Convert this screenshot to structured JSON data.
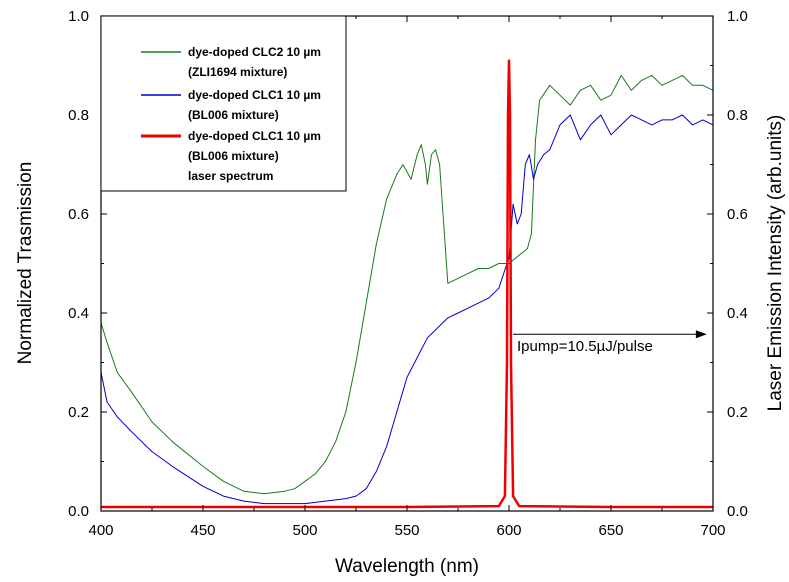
{
  "chart_data": {
    "type": "line",
    "xlabel": "Wavelength (nm)",
    "ylabel": "Normalized Trasmission",
    "ylabel_right": "Laser Emission Intensity (arb.units)",
    "xlim": [
      400,
      700
    ],
    "ylim": [
      0.0,
      1.0
    ],
    "ylim_right": [
      0.0,
      1.0
    ],
    "x_ticks": [
      "400",
      "450",
      "500",
      "550",
      "600",
      "650",
      "700"
    ],
    "y_ticks": [
      "0.0",
      "0.2",
      "0.4",
      "0.6",
      "0.8",
      "1.0"
    ],
    "y_ticks_right": [
      "0.0",
      "0.2",
      "0.4",
      "0.6",
      "0.8",
      "1.0"
    ],
    "grid": false,
    "legend_position": "top-left",
    "legend": [
      {
        "lines": [
          "dye-doped CLC2 10 µm",
          "(ZLI1694 mixture)"
        ],
        "color": "#1a7a1a"
      },
      {
        "lines": [
          "dye-doped CLC1 10 µm",
          "(BL006 mixture)"
        ],
        "color": "#0000cc"
      },
      {
        "lines": [
          "dye-doped CLC1 10 µm",
          "(BL006 mixture)",
          "laser spectrum"
        ],
        "color": "#ee0000"
      }
    ],
    "annotation": {
      "text": "Ipump=10.5µJ/pulse",
      "arrow_from_x": 602,
      "arrow_to_x": 697,
      "y": 0.357
    },
    "series": [
      {
        "color": "#1a7a1a",
        "x": [
          400,
          403,
          408,
          415,
          425,
          435,
          450,
          460,
          470,
          480,
          490,
          495,
          500,
          505,
          510,
          515,
          520,
          525,
          530,
          535,
          540,
          545,
          548,
          552,
          555,
          557,
          559,
          560,
          562,
          564,
          566,
          568,
          570,
          575,
          580,
          585,
          590,
          595,
          600,
          603,
          606,
          609,
          611,
          613,
          615,
          620,
          625,
          630,
          635,
          640,
          645,
          650,
          655,
          660,
          665,
          670,
          675,
          680,
          685,
          690,
          695,
          700
        ],
        "values": [
          0.38,
          0.34,
          0.28,
          0.24,
          0.18,
          0.14,
          0.09,
          0.06,
          0.04,
          0.035,
          0.04,
          0.045,
          0.06,
          0.075,
          0.1,
          0.14,
          0.2,
          0.3,
          0.42,
          0.54,
          0.63,
          0.68,
          0.7,
          0.67,
          0.72,
          0.74,
          0.7,
          0.66,
          0.72,
          0.73,
          0.7,
          0.58,
          0.46,
          0.47,
          0.48,
          0.49,
          0.49,
          0.5,
          0.5,
          0.51,
          0.52,
          0.53,
          0.56,
          0.75,
          0.83,
          0.86,
          0.84,
          0.82,
          0.85,
          0.86,
          0.83,
          0.84,
          0.88,
          0.85,
          0.87,
          0.88,
          0.86,
          0.87,
          0.88,
          0.86,
          0.86,
          0.85
        ]
      },
      {
        "color": "#0000cc",
        "x": [
          400,
          403,
          408,
          415,
          425,
          435,
          450,
          460,
          470,
          480,
          490,
          500,
          510,
          520,
          525,
          530,
          535,
          540,
          545,
          550,
          555,
          560,
          565,
          570,
          575,
          580,
          585,
          590,
          595,
          599,
          600,
          602,
          604,
          606,
          608,
          610,
          612,
          614,
          617,
          620,
          625,
          630,
          635,
          640,
          645,
          650,
          655,
          660,
          665,
          670,
          675,
          680,
          685,
          690,
          695,
          700
        ],
        "values": [
          0.28,
          0.22,
          0.19,
          0.16,
          0.12,
          0.09,
          0.05,
          0.03,
          0.02,
          0.015,
          0.015,
          0.015,
          0.02,
          0.025,
          0.03,
          0.045,
          0.08,
          0.13,
          0.2,
          0.27,
          0.31,
          0.35,
          0.37,
          0.39,
          0.4,
          0.41,
          0.42,
          0.43,
          0.45,
          0.5,
          0.51,
          0.62,
          0.58,
          0.6,
          0.7,
          0.72,
          0.67,
          0.7,
          0.72,
          0.73,
          0.78,
          0.8,
          0.75,
          0.78,
          0.8,
          0.76,
          0.78,
          0.8,
          0.79,
          0.78,
          0.79,
          0.79,
          0.8,
          0.78,
          0.79,
          0.78
        ]
      },
      {
        "color": "#ee0000",
        "x": [
          400,
          450,
          500,
          550,
          595,
          598,
          599,
          599.5,
          600,
          600.5,
          601,
          602,
          605,
          650,
          700
        ],
        "values": [
          0.008,
          0.008,
          0.008,
          0.008,
          0.01,
          0.03,
          0.3,
          0.8,
          0.91,
          0.8,
          0.3,
          0.03,
          0.01,
          0.008,
          0.008
        ]
      }
    ]
  }
}
